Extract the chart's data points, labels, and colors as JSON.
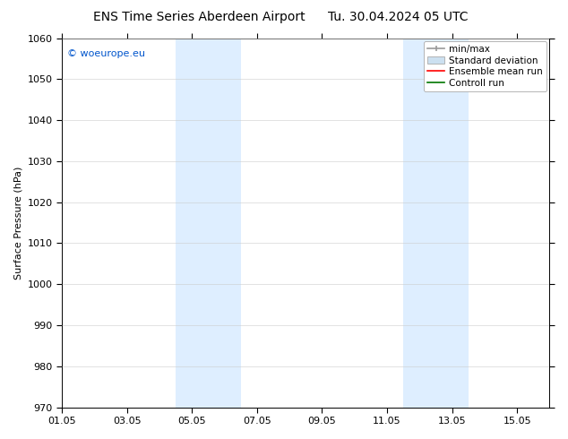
{
  "title_left": "ENS Time Series Aberdeen Airport",
  "title_right": "Tu. 30.04.2024 05 UTC",
  "ylabel": "Surface Pressure (hPa)",
  "ylim": [
    970,
    1060
  ],
  "yticks": [
    970,
    980,
    990,
    1000,
    1010,
    1020,
    1030,
    1040,
    1050,
    1060
  ],
  "xlim": [
    0,
    15
  ],
  "xtick_labels": [
    "01.05",
    "03.05",
    "05.05",
    "07.05",
    "09.05",
    "11.05",
    "13.05",
    "15.05"
  ],
  "xtick_positions": [
    0,
    2,
    4,
    6,
    8,
    10,
    12,
    14
  ],
  "shade_bands": [
    {
      "x_start": 3.5,
      "x_end": 4.5,
      "color": "#deeeff"
    },
    {
      "x_start": 4.5,
      "x_end": 5.5,
      "color": "#deeeff"
    },
    {
      "x_start": 10.5,
      "x_end": 11.5,
      "color": "#deeeff"
    },
    {
      "x_start": 11.5,
      "x_end": 12.5,
      "color": "#deeeff"
    }
  ],
  "watermark_text": "© woeurope.eu",
  "watermark_color": "#0055cc",
  "legend_items": [
    {
      "label": "min/max",
      "color": "#aaaaaa"
    },
    {
      "label": "Standard deviation",
      "color": "#cce0f0"
    },
    {
      "label": "Ensemble mean run",
      "color": "#ff0000"
    },
    {
      "label": "Controll run",
      "color": "#007700"
    }
  ],
  "bg_color": "#ffffff",
  "title_fontsize": 10,
  "axis_label_fontsize": 8,
  "tick_fontsize": 8,
  "legend_fontsize": 7.5,
  "watermark_fontsize": 8
}
